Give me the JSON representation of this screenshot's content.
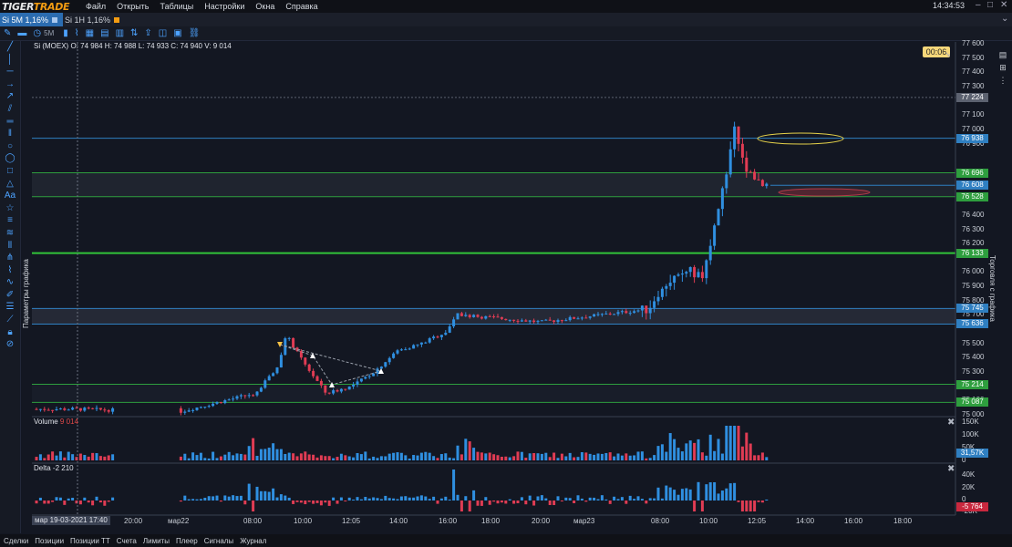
{
  "app": {
    "logo_main": "TIGER",
    "logo_accent": "TRADE",
    "time": "14:34:53"
  },
  "menu": [
    "Файл",
    "Открыть",
    "Таблицы",
    "Настройки",
    "Окна",
    "Справка"
  ],
  "tabs": [
    {
      "label": "Si 5M  1,16%",
      "active": true,
      "color": "#2b6cb0"
    },
    {
      "label": "Si 1H  1,16%",
      "active": false,
      "color": "#f39c12"
    }
  ],
  "toolbar": {
    "timeframe": "5M"
  },
  "side_labels": {
    "left": "Параметры графика",
    "right": "Торговля с графика"
  },
  "ohlc": "Si (MOEX) O: 74 984  H: 74 988  L: 74 933  C: 74 940  V: 9 014",
  "timer": "00:06",
  "price_axis": {
    "ticks": [
      "77 600",
      "77 500",
      "77 400",
      "77 300",
      "77 100",
      "77 000",
      "76 900",
      "76 400",
      "76 300",
      "76 200",
      "76 000",
      "75 900",
      "75 800",
      "75 700",
      "75 500",
      "75 400",
      "75 300",
      "75 100",
      "75 000"
    ],
    "tags": [
      {
        "label": "77 224",
        "color": "#5c6270"
      },
      {
        "label": "76 938",
        "color": "#2f7fc1"
      },
      {
        "label": "76 696",
        "color": "#2e9e3e"
      },
      {
        "label": "76 608",
        "color": "#2f7fc1"
      },
      {
        "label": "76 528",
        "color": "#2e9e3e"
      },
      {
        "label": "76 133",
        "color": "#2e9e3e"
      },
      {
        "label": "75 745",
        "color": "#2f7fc1"
      },
      {
        "label": "75 636",
        "color": "#2f7fc1"
      },
      {
        "label": "75 214",
        "color": "#2e9e3e"
      },
      {
        "label": "75 087",
        "color": "#2e9e3e"
      }
    ]
  },
  "volume_pane": {
    "title": "Volume",
    "value": "9 014",
    "ticks": [
      "150K",
      "100K",
      "50K",
      "0"
    ],
    "tag": "31,57K",
    "tag_color": "#2f7fc1"
  },
  "delta_pane": {
    "title": "Delta",
    "value": "-2 210",
    "ticks": [
      "40K",
      "20K",
      "0",
      "-20K"
    ],
    "tag": "-5 764",
    "tag_color": "#c9283e"
  },
  "time_axis": {
    "cursor": "мар 19-03-2021 17:40",
    "ticks": [
      "20:00",
      "мар22",
      "08:00",
      "10:00",
      "12:05",
      "14:00",
      "16:00",
      "18:00",
      "20:00",
      "мар23",
      "08:00",
      "10:00",
      "12:05",
      "14:00",
      "16:00",
      "18:00"
    ]
  },
  "bottom_tabs": [
    "Сделки",
    "Позиции",
    "Позиции TT",
    "Счета",
    "Лимиты",
    "Плеер",
    "Сигналы",
    "Журнал"
  ],
  "chart_data": {
    "type": "candlestick",
    "instrument": "Si (MOEX)",
    "timeframe": "5M",
    "ylim": [
      75000,
      77600
    ],
    "close_path": [
      {
        "time": "мар19 17:40",
        "price": 75040
      },
      {
        "time": "мар22 07:00",
        "price": 75020
      },
      {
        "time": "мар22 08:00",
        "price": 75150
      },
      {
        "time": "мар22 09:00",
        "price": 75330
      },
      {
        "time": "мар22 09:20",
        "price": 75560
      },
      {
        "time": "мар22 10:00",
        "price": 75380
      },
      {
        "time": "мар22 11:00",
        "price": 75150
      },
      {
        "time": "мар22 12:05",
        "price": 75200
      },
      {
        "time": "мар22 13:00",
        "price": 75300
      },
      {
        "time": "мар22 14:00",
        "price": 75450
      },
      {
        "time": "мар22 15:00",
        "price": 75500
      },
      {
        "time": "мар22 16:00",
        "price": 75580
      },
      {
        "time": "мар22 16:30",
        "price": 75700
      },
      {
        "time": "мар22 18:00",
        "price": 75680
      },
      {
        "time": "мар22 20:00",
        "price": 75650
      },
      {
        "time": "мар23 07:00",
        "price": 75740
      },
      {
        "time": "мар23 08:00",
        "price": 75900
      },
      {
        "time": "мар23 09:00",
        "price": 76020
      },
      {
        "time": "мар23 09:40",
        "price": 75960
      },
      {
        "time": "мар23 10:00",
        "price": 76180
      },
      {
        "time": "мар23 10:30",
        "price": 76550
      },
      {
        "time": "мар23 11:00",
        "price": 77040
      },
      {
        "time": "мар23 11:30",
        "price": 76720
      },
      {
        "time": "мар23 12:05",
        "price": 76600
      },
      {
        "time": "мар23 12:30",
        "price": 76580
      }
    ],
    "levels": [
      {
        "price": 77224,
        "style": "dotted",
        "color": "#5c6270"
      },
      {
        "price": 76938,
        "style": "solid",
        "color": "#2f7fc1"
      },
      {
        "price": 76696,
        "style": "solid",
        "color": "#2e9e3e"
      },
      {
        "price": 76608,
        "style": "solid",
        "color": "#2f7fc1"
      },
      {
        "price": 76528,
        "style": "solid",
        "color": "#2e9e3e"
      },
      {
        "price": 76133,
        "style": "thick",
        "color": "#31c43a"
      },
      {
        "price": 75745,
        "style": "solid",
        "color": "#2f7fc1"
      },
      {
        "price": 75636,
        "style": "solid",
        "color": "#2f7fc1"
      },
      {
        "price": 75214,
        "style": "solid",
        "color": "#2e9e3e"
      },
      {
        "price": 75087,
        "style": "solid",
        "color": "#2e9e3e"
      }
    ],
    "colors": {
      "up": "#2f8fe0",
      "down": "#e03c54"
    }
  }
}
